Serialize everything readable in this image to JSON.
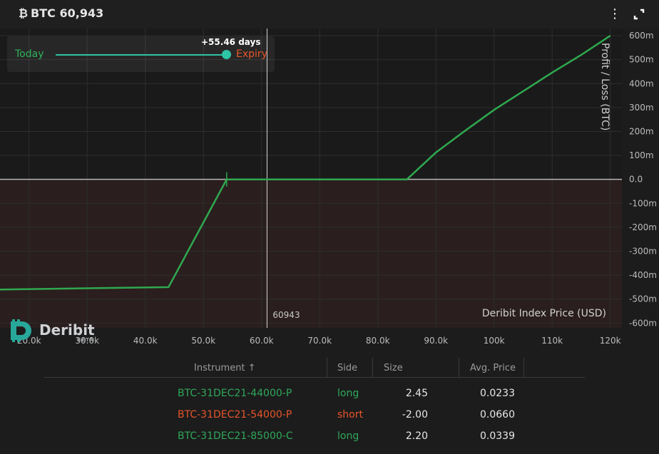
{
  "header": {
    "symbol_icon": "bitcoin-icon",
    "title": "BTC 60,943"
  },
  "slider": {
    "today_label": "Today",
    "expiry_label": "Expiry",
    "days_label": "+55.46 days",
    "position_fraction": 1.0
  },
  "brand": {
    "name": "Deribit",
    "badge": "BETA"
  },
  "chart_data": {
    "type": "line",
    "x_label": "Deribit Index Price",
    "x_unit": "(USD)",
    "y_label": "Profit / Loss   (BTC)",
    "xlim": [
      15000,
      122000
    ],
    "ylim": [
      -620,
      630
    ],
    "x_ticks": [
      {
        "v": 20000,
        "label": "20.0k"
      },
      {
        "v": 30000,
        "label": "30.0k"
      },
      {
        "v": 40000,
        "label": "40.0k"
      },
      {
        "v": 50000,
        "label": "50.0k"
      },
      {
        "v": 60000,
        "label": "60.0k"
      },
      {
        "v": 70000,
        "label": "70.0k"
      },
      {
        "v": 80000,
        "label": "80.0k"
      },
      {
        "v": 90000,
        "label": "90.0k"
      },
      {
        "v": 100000,
        "label": "100k"
      },
      {
        "v": 110000,
        "label": "110k"
      },
      {
        "v": 120000,
        "label": "120k"
      }
    ],
    "y_ticks": [
      {
        "v": 600,
        "label": "600m"
      },
      {
        "v": 500,
        "label": "500m"
      },
      {
        "v": 400,
        "label": "400m"
      },
      {
        "v": 300,
        "label": "300m"
      },
      {
        "v": 200,
        "label": "200m"
      },
      {
        "v": 100,
        "label": "100m"
      },
      {
        "v": 0,
        "label": "0.0"
      },
      {
        "v": -100,
        "label": "-100m"
      },
      {
        "v": -200,
        "label": "-200m"
      },
      {
        "v": -300,
        "label": "-300m"
      },
      {
        "v": -400,
        "label": "-400m"
      },
      {
        "v": -500,
        "label": "-500m"
      },
      {
        "v": -600,
        "label": "-600m"
      }
    ],
    "series": [
      {
        "points": [
          [
            15000,
            -460
          ],
          [
            44000,
            -450
          ],
          [
            54000,
            0
          ],
          [
            85000,
            0
          ],
          [
            90000,
            112
          ],
          [
            95000,
            203
          ],
          [
            100000,
            290
          ],
          [
            105000,
            368
          ],
          [
            110000,
            446
          ],
          [
            115000,
            520
          ],
          [
            120000,
            600
          ]
        ]
      }
    ],
    "marker": {
      "x": 60943,
      "label": "60943"
    },
    "breakeven_x": 54000,
    "colors": {
      "profit_line": "#2fa84f",
      "loss_zone": "#2a1e1e",
      "zero_line": "#b8b8b8",
      "marker": "#d8d8d8",
      "grid": "#2e2e2e"
    }
  },
  "table": {
    "headers": {
      "instrument": "Instrument",
      "sort_icon": "↑",
      "side": "Side",
      "size": "Size",
      "avg_price": "Avg. Price"
    },
    "rows": [
      {
        "instrument": "BTC-31DEC21-44000-P",
        "side": "long",
        "size": "2.45",
        "avg_price": "0.0233"
      },
      {
        "instrument": "BTC-31DEC21-54000-P",
        "side": "short",
        "size": "-2.00",
        "avg_price": "0.0660"
      },
      {
        "instrument": "BTC-31DEC21-85000-C",
        "side": "long",
        "size": "2.20",
        "avg_price": "0.0339"
      }
    ]
  }
}
